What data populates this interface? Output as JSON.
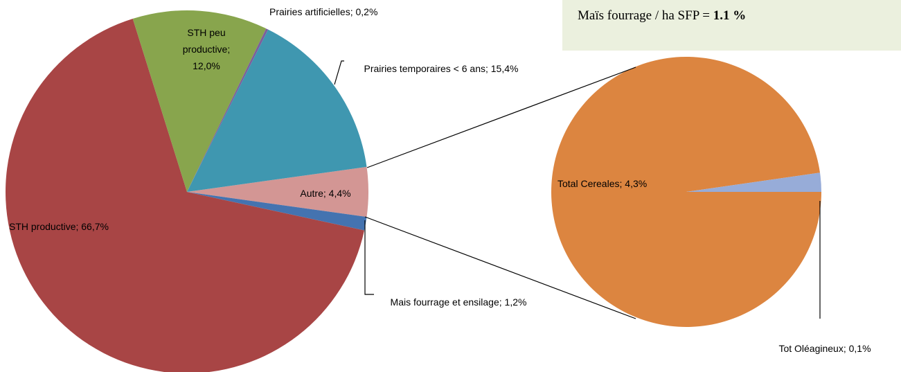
{
  "chart_data": [
    {
      "type": "pie",
      "categories": [
        "Autre",
        "Mais fourrage et ensilage",
        "STH productive",
        "STH peu productive",
        "Prairies artificielles",
        "Prairies temporaires < 6 ans"
      ],
      "values": [
        4.4,
        1.2,
        66.7,
        12.0,
        0.2,
        15.4
      ],
      "value_labels": [
        "4,4%",
        "1,2%",
        "66,7%",
        "12,0%",
        "0,2%",
        "15,4%"
      ],
      "colors": [
        "#d39694",
        "#4473b0",
        "#a84545",
        "#88a54d",
        "#7c5f9b",
        "#3f97b0"
      ]
    },
    {
      "type": "pie",
      "categories": [
        "Total  Cereales",
        "Tot Oléagineux"
      ],
      "values": [
        4.3,
        0.1
      ],
      "value_labels": [
        "4,3%",
        "0,1%"
      ],
      "colors": [
        "#dc8540",
        "#97acd8"
      ]
    }
  ],
  "label_separator": "; ",
  "annotation": {
    "text": "Maïs fourrage / ha SFP =",
    "value_label": "1.1 %"
  }
}
